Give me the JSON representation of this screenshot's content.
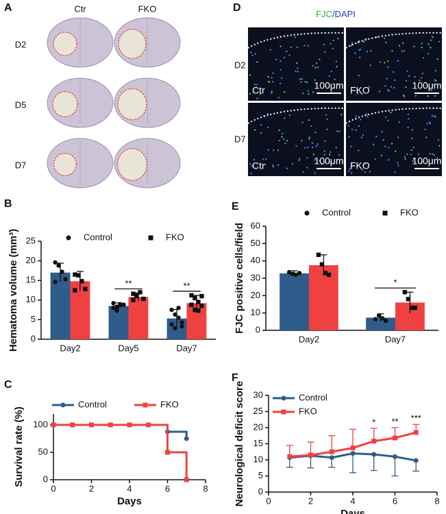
{
  "panel_a": {
    "label": "A",
    "columns": [
      "Ctr",
      "FKO"
    ],
    "rows": [
      "D2",
      "D5",
      "D7"
    ]
  },
  "panel_d": {
    "label": "D",
    "title": [
      "FJC",
      "/DAPI"
    ],
    "rows": [
      "D2",
      "D7"
    ],
    "image_labels": [
      "Ctr",
      "FKO",
      "Ctr",
      "FKO"
    ],
    "scale_bars": [
      "100μm",
      "100μm",
      "100μm",
      "100μm"
    ]
  },
  "chart_data": [
    {
      "type": "bar",
      "label": "B",
      "ylabel": "Hematoma volume (mm³)",
      "categories": [
        "Day2",
        "Day5",
        "Day7"
      ],
      "series": [
        {
          "name": "Control",
          "color": "#2e5d8c",
          "marker": "circle",
          "values": [
            17,
            8.5,
            5.3
          ],
          "errors": [
            2.4,
            0.8,
            2.3
          ],
          "points": [
            [
              19.6,
              18.8,
              17.2,
              15.3,
              14.6
            ],
            [
              8.0,
              8.3,
              8.7,
              8.8,
              9.2,
              7.3,
              8.9
            ],
            [
              7.5,
              6.3,
              5.5,
              4.3,
              3.8,
              2.8,
              8.0,
              3.3
            ]
          ]
        },
        {
          "name": "FKO",
          "color": "#f04141",
          "marker": "square",
          "values": [
            14.8,
            10.8,
            9.2
          ],
          "errors": [
            2.5,
            1.0,
            2.0
          ],
          "points": [
            [
              16.5,
              16.3,
              14.8,
              12.8,
              12.5
            ],
            [
              11.6,
              11.3,
              12.0,
              10.3,
              10.0,
              11.0
            ],
            [
              11.2,
              10.5,
              9.5,
              8.5,
              8.8,
              7.5,
              7.3,
              11.0
            ]
          ]
        }
      ],
      "annotations": [
        null,
        "**",
        "**"
      ],
      "ylim": [
        0,
        25
      ],
      "yticks": [
        0,
        5,
        10,
        15,
        20,
        25
      ],
      "legend": "top"
    },
    {
      "type": "line",
      "step": true,
      "label": "C",
      "ylabel": "Survival rate (%)",
      "xlabel": "Days",
      "x": [
        0,
        1,
        2,
        3,
        4,
        5,
        6,
        7
      ],
      "series": [
        {
          "name": "Control",
          "color": "#2e5d8c",
          "marker": "circle",
          "values": [
            100,
            100,
            100,
            100,
            100,
            100,
            87.5,
            75
          ]
        },
        {
          "name": "FKO",
          "color": "#f04141",
          "marker": "square",
          "values": [
            100,
            100,
            100,
            100,
            100,
            100,
            50,
            0
          ]
        }
      ],
      "xlim": [
        0,
        8
      ],
      "xticks": [
        0,
        2,
        4,
        6,
        8
      ],
      "ylim": [
        0,
        120
      ],
      "yticks": [
        0,
        50,
        100
      ],
      "legend": "top"
    },
    {
      "type": "bar",
      "label": "E",
      "ylabel": "FJC positive cells/field",
      "categories": [
        "Day2",
        "Day7"
      ],
      "series": [
        {
          "name": "Control",
          "color": "#2e5d8c",
          "marker": "circle",
          "values": [
            32.8,
            7.3
          ],
          "errors": [
            1.5,
            2.2
          ],
          "points": [
            [
              33.5,
              32.5,
              32,
              33
            ],
            [
              6.5,
              8.5,
              7,
              5.5
            ]
          ]
        },
        {
          "name": "FKO",
          "color": "#f04141",
          "marker": "square",
          "values": [
            37.5,
            16
          ],
          "errors": [
            6,
            6
          ],
          "points": [
            [
              43.5,
              38,
              33,
              32
            ],
            [
              22,
              18,
              13,
              13
            ]
          ]
        }
      ],
      "annotations": [
        null,
        "*"
      ],
      "ylim": [
        0,
        60
      ],
      "yticks": [
        0,
        10,
        20,
        30,
        40,
        50,
        60
      ],
      "legend": "top"
    },
    {
      "type": "line",
      "step": false,
      "label": "F",
      "ylabel": "Neurological deficit score",
      "xlabel": "Days",
      "x": [
        1,
        2,
        3,
        4,
        5,
        6,
        7
      ],
      "series": [
        {
          "name": "Control",
          "color": "#2e5d8c",
          "marker": "circle",
          "error_direction": "down",
          "values": [
            10.7,
            11.3,
            10.7,
            12.0,
            11.7,
            11.0,
            9.8
          ],
          "errors": [
            3,
            3.8,
            3,
            6,
            5,
            6,
            3.3
          ]
        },
        {
          "name": "FKO",
          "color": "#f04141",
          "marker": "square",
          "error_direction": "up",
          "values": [
            11.0,
            11.5,
            12.5,
            13.7,
            15.8,
            16.8,
            18.5
          ],
          "errors": [
            3.5,
            4,
            5,
            5.8,
            4,
            3.2,
            2.5
          ]
        }
      ],
      "annotations": [
        null,
        null,
        null,
        null,
        "*",
        "**",
        "***"
      ],
      "xlim": [
        0,
        8
      ],
      "xticks": [
        0,
        2,
        4,
        6,
        8
      ],
      "ylim": [
        0,
        30
      ],
      "yticks": [
        0,
        5,
        10,
        15,
        20,
        25,
        30
      ],
      "legend": "upper left"
    }
  ]
}
